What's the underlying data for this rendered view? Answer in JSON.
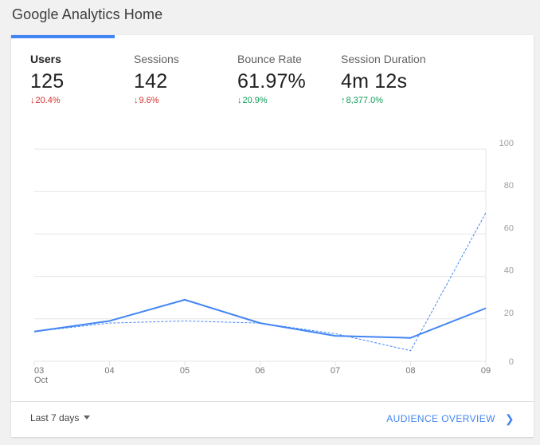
{
  "page": {
    "title": "Google Analytics Home"
  },
  "metrics": [
    {
      "label": "Users",
      "value": "125",
      "delta": "20.4%",
      "direction": "down",
      "active": true
    },
    {
      "label": "Sessions",
      "value": "142",
      "delta": "9.6%",
      "direction": "down",
      "active": false
    },
    {
      "label": "Bounce Rate",
      "value": "61.97%",
      "delta": "20.9%",
      "direction": "down_good",
      "active": false
    },
    {
      "label": "Session Duration",
      "value": "4m 12s",
      "delta": "8,377.0%",
      "direction": "up",
      "active": false
    }
  ],
  "colors": {
    "accent": "#4285f4",
    "negative": "#d32f2f",
    "positive": "#0f9d58"
  },
  "footer": {
    "date_range": "Last 7 days",
    "link_label": "AUDIENCE OVERVIEW"
  },
  "chart_data": {
    "type": "line",
    "x": [
      "03",
      "04",
      "05",
      "06",
      "07",
      "08",
      "09"
    ],
    "x_sublabel": "Oct",
    "yticks": [
      0,
      20,
      40,
      60,
      80,
      100
    ],
    "ylim": [
      0,
      100
    ],
    "grid": true,
    "series": [
      {
        "values": [
          14,
          19,
          29,
          18,
          12,
          11,
          25
        ],
        "style": "solid"
      },
      {
        "values": [
          14,
          18,
          19,
          18,
          13,
          5,
          70
        ],
        "style": "dashed"
      }
    ]
  }
}
